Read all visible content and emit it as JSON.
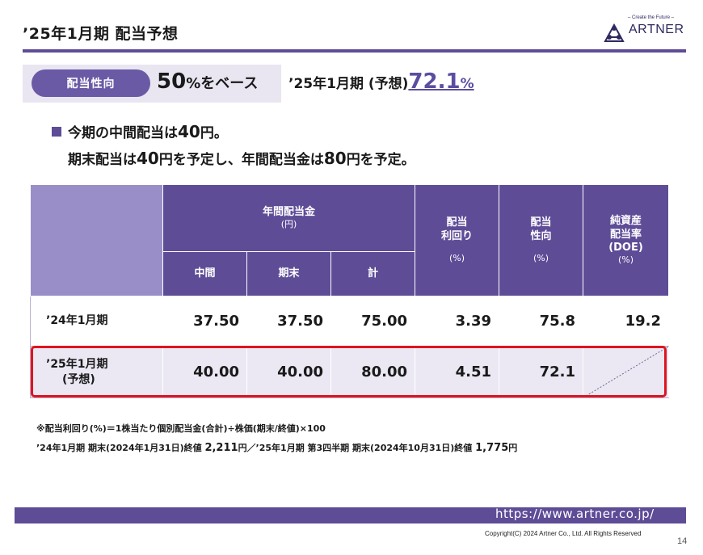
{
  "title": "’25年1月期 配当予想",
  "logo": {
    "tagline": "– Create the Future –",
    "name": "ARTNER"
  },
  "policy": {
    "pill_label": "配当性向",
    "base_value": "50",
    "base_suffix": "%をベース",
    "forecast_label": "’25年1月期 (予想)",
    "forecast_value": "72.1",
    "forecast_unit": "%"
  },
  "notes": {
    "line1_pre": "今期の中間配当は",
    "line1_num": "40",
    "line1_post": "円。",
    "line2_a": "期末配当は",
    "line2_num1": "40",
    "line2_b": "円を予定し、年間配当金は",
    "line2_num2": "80",
    "line2_c": "円を予定。"
  },
  "table": {
    "header_annual": "年間配当金",
    "header_annual_unit": "(円)",
    "header_yield": [
      "配当",
      "利回り"
    ],
    "header_yield_unit": "(%)",
    "header_payout": [
      "配当",
      "性向"
    ],
    "header_payout_unit": "(%)",
    "header_doe": [
      "純資産",
      "配当率",
      "(DOE)"
    ],
    "header_doe_unit": "(%)",
    "sub_interim": "中間",
    "sub_yearend": "期末",
    "sub_total": "計",
    "rows": [
      {
        "label": [
          "’24年1月期"
        ],
        "interim": "37.50",
        "yearend": "37.50",
        "total": "75.00",
        "yield": "3.39",
        "payout": "75.8",
        "doe": "19.2"
      },
      {
        "label": [
          "’25年1月期",
          "(予想)"
        ],
        "interim": "40.00",
        "yearend": "40.00",
        "total": "80.00",
        "yield": "4.51",
        "payout": "72.1",
        "doe": ""
      }
    ]
  },
  "footnotes": {
    "formula": "※配当利回り(%)＝1株当たり個別配当金(合計)÷株価(期末/終値)×100",
    "price_a": "’24年1月期 期末(2024年1月31日)終値 ",
    "price_a_val": "2,211",
    "price_mid": "円／’25年1月期 第3四半期 期末(2024年10月31日)終値 ",
    "price_b_val": "1,775",
    "price_end": "円"
  },
  "footer": {
    "url": "https://www.artner.co.jp/",
    "copyright": "Copyright(C) 2024 Artner Co., Ltd. All Rights Reserved",
    "page_number": "14"
  },
  "colors": {
    "accent": "#5e4c97",
    "accent_light": "#9a8ec8",
    "highlight": "#e0141e",
    "value": "#5a4ea0"
  }
}
